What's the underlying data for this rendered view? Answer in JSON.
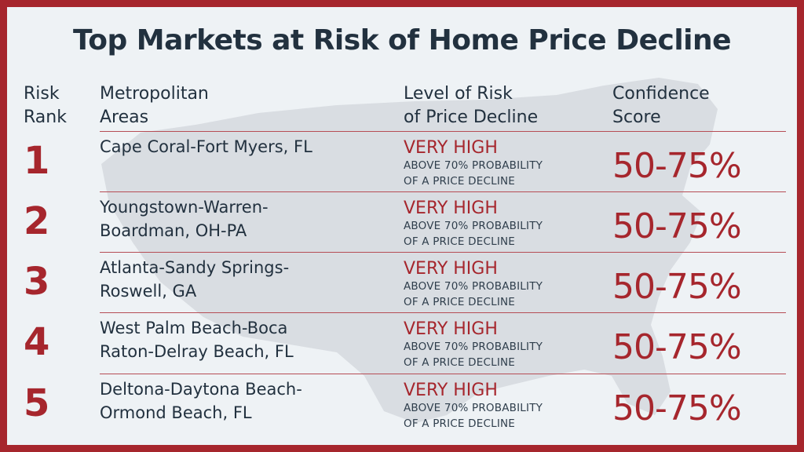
{
  "title": "Top Markets at Risk of Home Price Decline",
  "headers": {
    "rank_line1": "Risk",
    "rank_line2": "Rank",
    "area_line1": "Metropolitan",
    "area_line2": "Areas",
    "level_line1": "Level of Risk",
    "level_line2": "of Price Decline",
    "score_line1": "Confidence",
    "score_line2": "Score"
  },
  "rows": [
    {
      "rank": "1",
      "area_line1": "Cape Coral-Fort Myers, FL",
      "area_line2": "",
      "level": "VERY HIGH",
      "desc_line1": "ABOVE 70% PROBABILITY",
      "desc_line2": "OF A PRICE DECLINE",
      "score": "50-75%"
    },
    {
      "rank": "2",
      "area_line1": "Youngstown-Warren-",
      "area_line2": "Boardman, OH-PA",
      "level": "VERY HIGH",
      "desc_line1": "ABOVE 70% PROBABILITY",
      "desc_line2": "OF A PRICE DECLINE",
      "score": "50-75%"
    },
    {
      "rank": "3",
      "area_line1": "Atlanta-Sandy Springs-",
      "area_line2": "Roswell, GA",
      "level": "VERY HIGH",
      "desc_line1": "ABOVE 70% PROBABILITY",
      "desc_line2": "OF A PRICE DECLINE",
      "score": "50-75%"
    },
    {
      "rank": "4",
      "area_line1": "West Palm Beach-Boca",
      "area_line2": "Raton-Delray Beach, FL",
      "level": "VERY HIGH",
      "desc_line1": "ABOVE 70% PROBABILITY",
      "desc_line2": "OF A PRICE DECLINE",
      "score": "50-75%"
    },
    {
      "rank": "5",
      "area_line1": "Deltona-Daytona Beach-",
      "area_line2": "Ormond Beach, FL",
      "level": "VERY HIGH",
      "desc_line1": "ABOVE 70% PROBABILITY",
      "desc_line2": "OF A PRICE DECLINE",
      "score": "50-75%"
    }
  ],
  "colors": {
    "accent": "#a6262d",
    "text": "#22313f",
    "background": "#eef2f5",
    "map_silhouette": "#d8dde2"
  }
}
